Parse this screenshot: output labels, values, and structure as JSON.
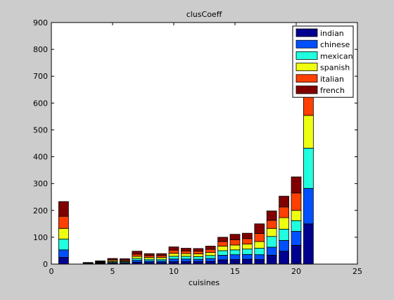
{
  "chart_data": {
    "type": "bar",
    "stacked": true,
    "title": "clusCoeff",
    "xlabel": "cuisines",
    "ylabel": "",
    "xlim": [
      0,
      25
    ],
    "ylim": [
      0,
      900
    ],
    "xticks": [
      "0",
      "5",
      "10",
      "15",
      "20",
      "25"
    ],
    "yticks": [
      "0",
      "100",
      "200",
      "300",
      "400",
      "500",
      "600",
      "700",
      "800",
      "900"
    ],
    "legend_position": "top-right",
    "x": [
      1,
      2,
      3,
      4,
      5,
      6,
      7,
      8,
      9,
      10,
      11,
      12,
      13,
      14,
      15,
      16,
      17,
      18,
      19,
      20,
      21
    ],
    "series": [
      {
        "name": "indian",
        "color": "#00008f",
        "values": [
          25,
          0,
          1,
          2,
          3,
          3,
          7,
          6,
          6,
          9,
          9,
          9,
          10,
          16,
          17,
          18,
          17,
          33,
          48,
          70,
          150
        ]
      },
      {
        "name": "chinese",
        "color": "#0050ff",
        "values": [
          28,
          0,
          1,
          2,
          3,
          3,
          7,
          6,
          6,
          10,
          10,
          9,
          11,
          17,
          18,
          18,
          18,
          30,
          40,
          52,
          132
        ]
      },
      {
        "name": "mexican",
        "color": "#20ffdf",
        "values": [
          40,
          0,
          1,
          2,
          3,
          3,
          7,
          6,
          6,
          10,
          10,
          10,
          11,
          17,
          18,
          20,
          24,
          40,
          42,
          40,
          150
        ]
      },
      {
        "name": "spanish",
        "color": "#efff10",
        "values": [
          40,
          0,
          1,
          2,
          4,
          3,
          8,
          7,
          7,
          11,
          10,
          10,
          11,
          17,
          18,
          19,
          25,
          30,
          43,
          38,
          122
        ]
      },
      {
        "name": "italian",
        "color": "#ff4000",
        "values": [
          45,
          0,
          1,
          2,
          4,
          4,
          8,
          7,
          7,
          12,
          10,
          10,
          12,
          17,
          20,
          20,
          30,
          30,
          40,
          65,
          110
        ]
      },
      {
        "name": "french",
        "color": "#800000",
        "values": [
          55,
          0,
          1,
          2,
          4,
          4,
          11,
          7,
          7,
          12,
          10,
          10,
          12,
          16,
          20,
          20,
          36,
          35,
          40,
          60,
          150
        ]
      }
    ]
  }
}
